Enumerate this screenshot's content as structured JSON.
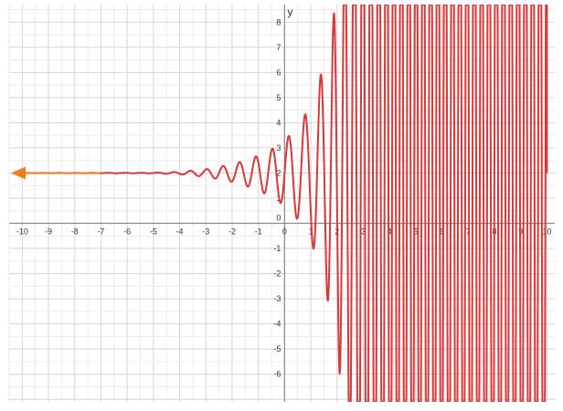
{
  "chart_data": {
    "type": "line",
    "title": "",
    "xlabel": "",
    "ylabel": "y",
    "xlim": [
      -10.5,
      10.3
    ],
    "ylim": [
      -7.1,
      8.7
    ],
    "grid": true,
    "x_ticks": [
      -10,
      -9,
      -8,
      -7,
      -6,
      -5,
      -4,
      -3,
      -2,
      -1,
      0,
      1,
      2,
      3,
      4,
      5,
      6,
      7,
      8,
      9,
      10
    ],
    "y_ticks": [
      -6,
      -5,
      -4,
      -3,
      -2,
      -1,
      1,
      2,
      3,
      4,
      5,
      6,
      7,
      8
    ],
    "x_tick_labels": [
      "-10",
      "-9",
      "-8",
      "-7",
      "-6",
      "-5",
      "-4",
      "-3",
      "-2",
      "-1",
      "0",
      "1",
      "2",
      "3",
      "4",
      "5",
      "6",
      "7",
      "8",
      "9",
      "10"
    ],
    "y_tick_labels": [
      "-6",
      "-5",
      "-4",
      "-3",
      "-2",
      "-1",
      "1",
      "2",
      "3",
      "4",
      "5",
      "6",
      "7",
      "8"
    ],
    "zero_label": "0",
    "series": [
      {
        "color": "#d9383a",
        "baseline": 2,
        "left_arrow": true,
        "arrow_color": "#f07b22",
        "x": [
          -10,
          -5,
          -4,
          -3,
          -2.5,
          -2,
          -1.5,
          -1,
          -0.5,
          0,
          0.5,
          1,
          1.5,
          2,
          2.5,
          3,
          4,
          5,
          6,
          7,
          8,
          9,
          10
        ],
        "envelope": [
          0.005,
          0.01,
          0.05,
          0.15,
          0.25,
          0.35,
          0.5,
          0.7,
          0.95,
          1.3,
          1.85,
          2.7,
          4.3,
          7,
          12,
          20,
          20,
          20,
          20,
          20,
          20,
          20,
          20
        ],
        "cycles_per_unit": [
          1.6,
          1.6,
          1.6,
          1.6,
          1.6,
          1.6,
          1.6,
          1.6,
          1.6,
          1.6,
          1.6,
          1.6,
          1.9,
          2.3,
          2.8,
          3.2,
          3.5,
          3.6,
          3.6,
          3.6,
          3.6,
          3.6,
          3.6
        ],
        "end_value": 2
      }
    ]
  }
}
